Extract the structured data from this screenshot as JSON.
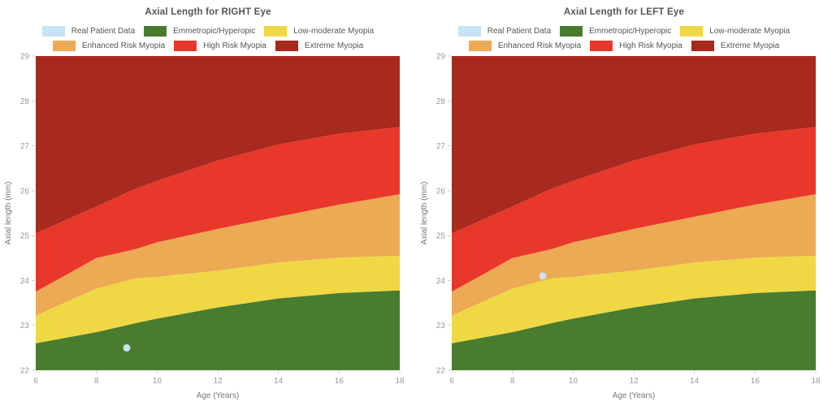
{
  "page": {
    "background": "#ffffff"
  },
  "chart_data": [
    {
      "type": "area",
      "title": "Axial Length for RIGHT Eye",
      "xlabel": "Age (Years)",
      "ylabel": "Axial length (mm)",
      "xlim": [
        6,
        18
      ],
      "ylim": [
        22,
        29
      ],
      "xticks": [
        6,
        8,
        10,
        12,
        14,
        16,
        18
      ],
      "yticks": [
        22,
        23,
        24,
        25,
        26,
        27,
        28,
        29
      ],
      "grid": false,
      "legend_position": "top",
      "ages": [
        6,
        8,
        9.3,
        10,
        12,
        14,
        16,
        18
      ],
      "bands": [
        {
          "name": "Emmetropic/Hyperopic",
          "color": "#4a7c2f",
          "upper": [
            22.6,
            22.85,
            23.05,
            23.15,
            23.4,
            23.6,
            23.72,
            23.78
          ]
        },
        {
          "name": "Low-moderate Myopia",
          "color": "#f0d844",
          "upper": [
            23.22,
            23.82,
            24.05,
            24.08,
            24.22,
            24.4,
            24.51,
            24.55
          ]
        },
        {
          "name": "Enhanced Risk Myopia",
          "color": "#ecaa55",
          "upper": [
            23.75,
            24.5,
            24.7,
            24.85,
            25.15,
            25.42,
            25.69,
            25.92
          ]
        },
        {
          "name": "High Risk Myopia",
          "color": "#e8382b",
          "upper": [
            25.05,
            25.65,
            26.05,
            26.22,
            26.67,
            27.03,
            27.27,
            27.42
          ]
        },
        {
          "name": "Extreme Myopia",
          "color": "#a8291e",
          "upper": [
            29,
            29,
            29,
            29,
            29,
            29,
            29,
            29
          ]
        }
      ],
      "patient_point": {
        "label": "Real Patient Data",
        "color": "#c8e3f4",
        "x": 9,
        "y": 22.5
      }
    },
    {
      "type": "area",
      "title": "Axial Length for LEFT Eye",
      "xlabel": "Age (Years)",
      "ylabel": "Axial length (mm)",
      "xlim": [
        6,
        18
      ],
      "ylim": [
        22,
        29
      ],
      "xticks": [
        6,
        8,
        10,
        12,
        14,
        16,
        18
      ],
      "yticks": [
        22,
        23,
        24,
        25,
        26,
        27,
        28,
        29
      ],
      "grid": false,
      "legend_position": "top",
      "ages": [
        6,
        8,
        9.3,
        10,
        12,
        14,
        16,
        18
      ],
      "bands": [
        {
          "name": "Emmetropic/Hyperopic",
          "color": "#4a7c2f",
          "upper": [
            22.6,
            22.85,
            23.05,
            23.15,
            23.4,
            23.6,
            23.72,
            23.78
          ]
        },
        {
          "name": "Low-moderate Myopia",
          "color": "#f0d844",
          "upper": [
            23.22,
            23.82,
            24.05,
            24.08,
            24.22,
            24.4,
            24.51,
            24.55
          ]
        },
        {
          "name": "Enhanced Risk Myopia",
          "color": "#ecaa55",
          "upper": [
            23.75,
            24.5,
            24.7,
            24.85,
            25.15,
            25.42,
            25.69,
            25.92
          ]
        },
        {
          "name": "High Risk Myopia",
          "color": "#e8382b",
          "upper": [
            25.05,
            25.65,
            26.05,
            26.22,
            26.67,
            27.03,
            27.27,
            27.42
          ]
        },
        {
          "name": "Extreme Myopia",
          "color": "#a8291e",
          "upper": [
            29,
            29,
            29,
            29,
            29,
            29,
            29,
            29
          ]
        }
      ],
      "patient_point": {
        "label": "Real Patient Data",
        "color": "#c8e3f4",
        "x": 9,
        "y": 24.1
      }
    }
  ]
}
